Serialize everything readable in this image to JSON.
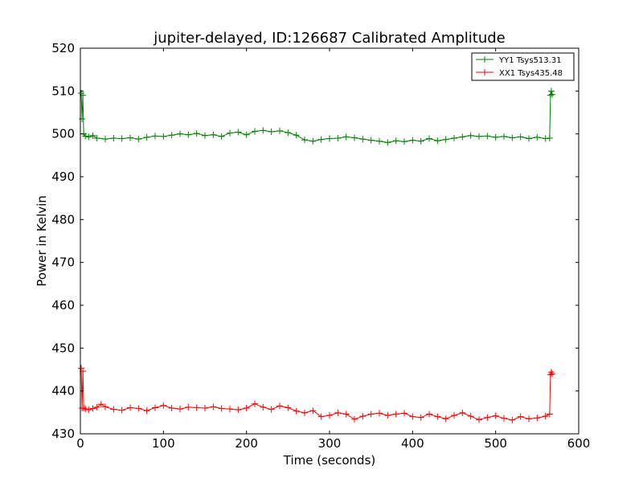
{
  "chart_data": {
    "type": "line",
    "title": "jupiter-delayed, ID:126687 Calibrated Amplitude",
    "xlabel": "Time (seconds)",
    "ylabel": "Power in Kelvin",
    "xlim": [
      0,
      600
    ],
    "ylim": [
      430,
      520
    ],
    "xticks": [
      0,
      100,
      200,
      300,
      400,
      500,
      600
    ],
    "yticks": [
      430,
      440,
      450,
      460,
      470,
      480,
      490,
      500,
      510,
      520
    ],
    "grid": false,
    "legend_position": "top-right",
    "marker": "+",
    "series": [
      {
        "name": "YY1 Tsys513.31",
        "color": "#008000",
        "points": [
          [
            1,
            509.5
          ],
          [
            2,
            503.5
          ],
          [
            3,
            509.0
          ],
          [
            4,
            500.0
          ],
          [
            6,
            499.5
          ],
          [
            10,
            499.3
          ],
          [
            15,
            499.6
          ],
          [
            20,
            499.0
          ],
          [
            30,
            498.8
          ],
          [
            40,
            499.0
          ],
          [
            50,
            498.9
          ],
          [
            60,
            499.1
          ],
          [
            70,
            498.8
          ],
          [
            80,
            499.2
          ],
          [
            90,
            499.5
          ],
          [
            100,
            499.4
          ],
          [
            110,
            499.7
          ],
          [
            120,
            500.0
          ],
          [
            130,
            499.8
          ],
          [
            140,
            500.1
          ],
          [
            150,
            499.6
          ],
          [
            160,
            499.8
          ],
          [
            170,
            499.4
          ],
          [
            180,
            500.2
          ],
          [
            190,
            500.4
          ],
          [
            200,
            499.8
          ],
          [
            210,
            500.6
          ],
          [
            220,
            500.8
          ],
          [
            230,
            500.5
          ],
          [
            240,
            500.7
          ],
          [
            250,
            500.3
          ],
          [
            260,
            499.7
          ],
          [
            270,
            498.6
          ],
          [
            280,
            498.3
          ],
          [
            290,
            498.7
          ],
          [
            300,
            498.9
          ],
          [
            310,
            499.0
          ],
          [
            320,
            499.3
          ],
          [
            330,
            499.1
          ],
          [
            340,
            498.8
          ],
          [
            350,
            498.5
          ],
          [
            360,
            498.3
          ],
          [
            370,
            498.0
          ],
          [
            380,
            498.4
          ],
          [
            390,
            498.2
          ],
          [
            400,
            498.5
          ],
          [
            410,
            498.3
          ],
          [
            420,
            498.9
          ],
          [
            430,
            498.4
          ],
          [
            440,
            498.7
          ],
          [
            450,
            499.0
          ],
          [
            460,
            499.3
          ],
          [
            470,
            499.6
          ],
          [
            480,
            499.4
          ],
          [
            490,
            499.5
          ],
          [
            500,
            499.2
          ],
          [
            510,
            499.4
          ],
          [
            520,
            499.1
          ],
          [
            530,
            499.3
          ],
          [
            540,
            498.9
          ],
          [
            550,
            499.2
          ],
          [
            560,
            498.9
          ],
          [
            565,
            499.0
          ],
          [
            566,
            509.0
          ],
          [
            567,
            510.0
          ],
          [
            568,
            509.2
          ]
        ]
      },
      {
        "name": "XX1 Tsys435.48",
        "color": "#ff0000",
        "points": [
          [
            1,
            445.3
          ],
          [
            2,
            436.0
          ],
          [
            3,
            444.6
          ],
          [
            4,
            436.0
          ],
          [
            6,
            435.8
          ],
          [
            10,
            435.6
          ],
          [
            15,
            435.9
          ],
          [
            20,
            436.2
          ],
          [
            25,
            436.9
          ],
          [
            30,
            436.3
          ],
          [
            40,
            435.7
          ],
          [
            50,
            435.5
          ],
          [
            60,
            436.1
          ],
          [
            70,
            435.9
          ],
          [
            80,
            435.4
          ],
          [
            90,
            436.1
          ],
          [
            100,
            436.6
          ],
          [
            110,
            436.0
          ],
          [
            120,
            435.8
          ],
          [
            130,
            436.2
          ],
          [
            140,
            436.1
          ],
          [
            150,
            436.0
          ],
          [
            160,
            436.3
          ],
          [
            170,
            435.9
          ],
          [
            180,
            435.8
          ],
          [
            190,
            435.6
          ],
          [
            200,
            436.0
          ],
          [
            210,
            437.0
          ],
          [
            220,
            436.2
          ],
          [
            230,
            435.7
          ],
          [
            240,
            436.5
          ],
          [
            250,
            436.1
          ],
          [
            260,
            435.3
          ],
          [
            270,
            434.9
          ],
          [
            280,
            435.4
          ],
          [
            290,
            434.0
          ],
          [
            300,
            434.3
          ],
          [
            310,
            434.9
          ],
          [
            320,
            434.6
          ],
          [
            330,
            433.4
          ],
          [
            340,
            434.1
          ],
          [
            350,
            434.6
          ],
          [
            360,
            434.8
          ],
          [
            370,
            434.3
          ],
          [
            380,
            434.6
          ],
          [
            390,
            434.8
          ],
          [
            400,
            434.0
          ],
          [
            410,
            433.8
          ],
          [
            420,
            434.6
          ],
          [
            430,
            434.0
          ],
          [
            440,
            433.5
          ],
          [
            450,
            434.3
          ],
          [
            460,
            434.9
          ],
          [
            470,
            434.1
          ],
          [
            480,
            433.3
          ],
          [
            490,
            433.8
          ],
          [
            500,
            434.2
          ],
          [
            510,
            433.6
          ],
          [
            520,
            433.2
          ],
          [
            530,
            434.0
          ],
          [
            540,
            433.5
          ],
          [
            550,
            433.7
          ],
          [
            560,
            434.1
          ],
          [
            565,
            434.6
          ],
          [
            566,
            443.8
          ],
          [
            567,
            444.4
          ],
          [
            568,
            444.0
          ]
        ]
      }
    ]
  }
}
